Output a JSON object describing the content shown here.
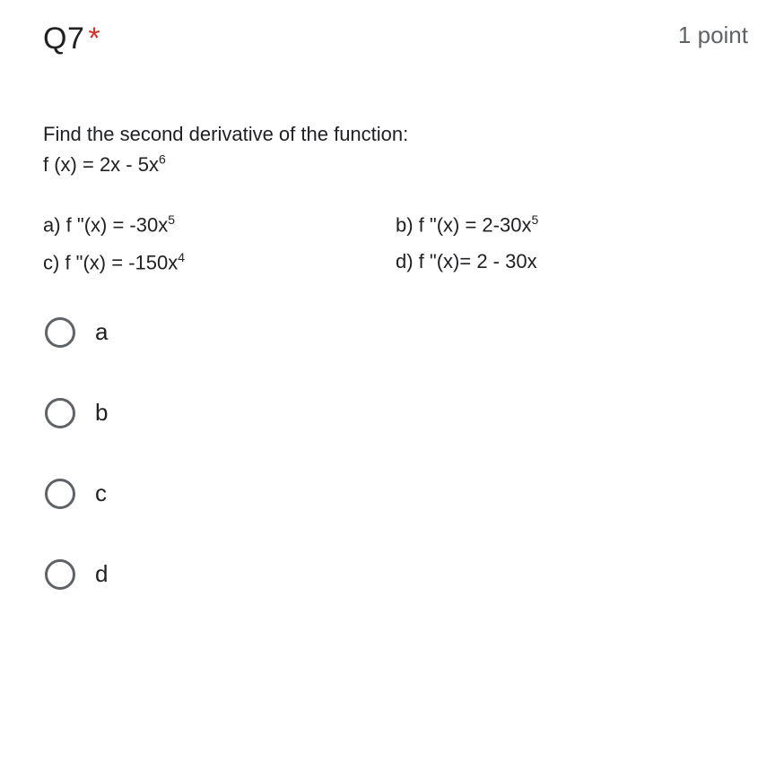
{
  "header": {
    "title": "Q7",
    "required_marker": "*",
    "points": "1 point"
  },
  "prompt": {
    "line1": "Find the second derivative of the function:",
    "fn_prefix": "f (x) =  2x - 5x",
    "fn_exp": "6"
  },
  "answers": {
    "a_prefix": "a) f \"(x) = -30x",
    "a_exp": "5",
    "b_prefix": "b) f \"(x) =  2-30x",
    "b_exp": "5",
    "c_prefix": "c) f \"(x) = -150x",
    "c_exp": "4",
    "d_text": "d) f \"(x)= 2 - 30x"
  },
  "choices": {
    "a": "a",
    "b": "b",
    "c": "c",
    "d": "d"
  },
  "colors": {
    "required": "#d93025",
    "text": "#202124",
    "muted": "#5f6368",
    "radio_border": "#5f6368",
    "background": "#ffffff"
  }
}
